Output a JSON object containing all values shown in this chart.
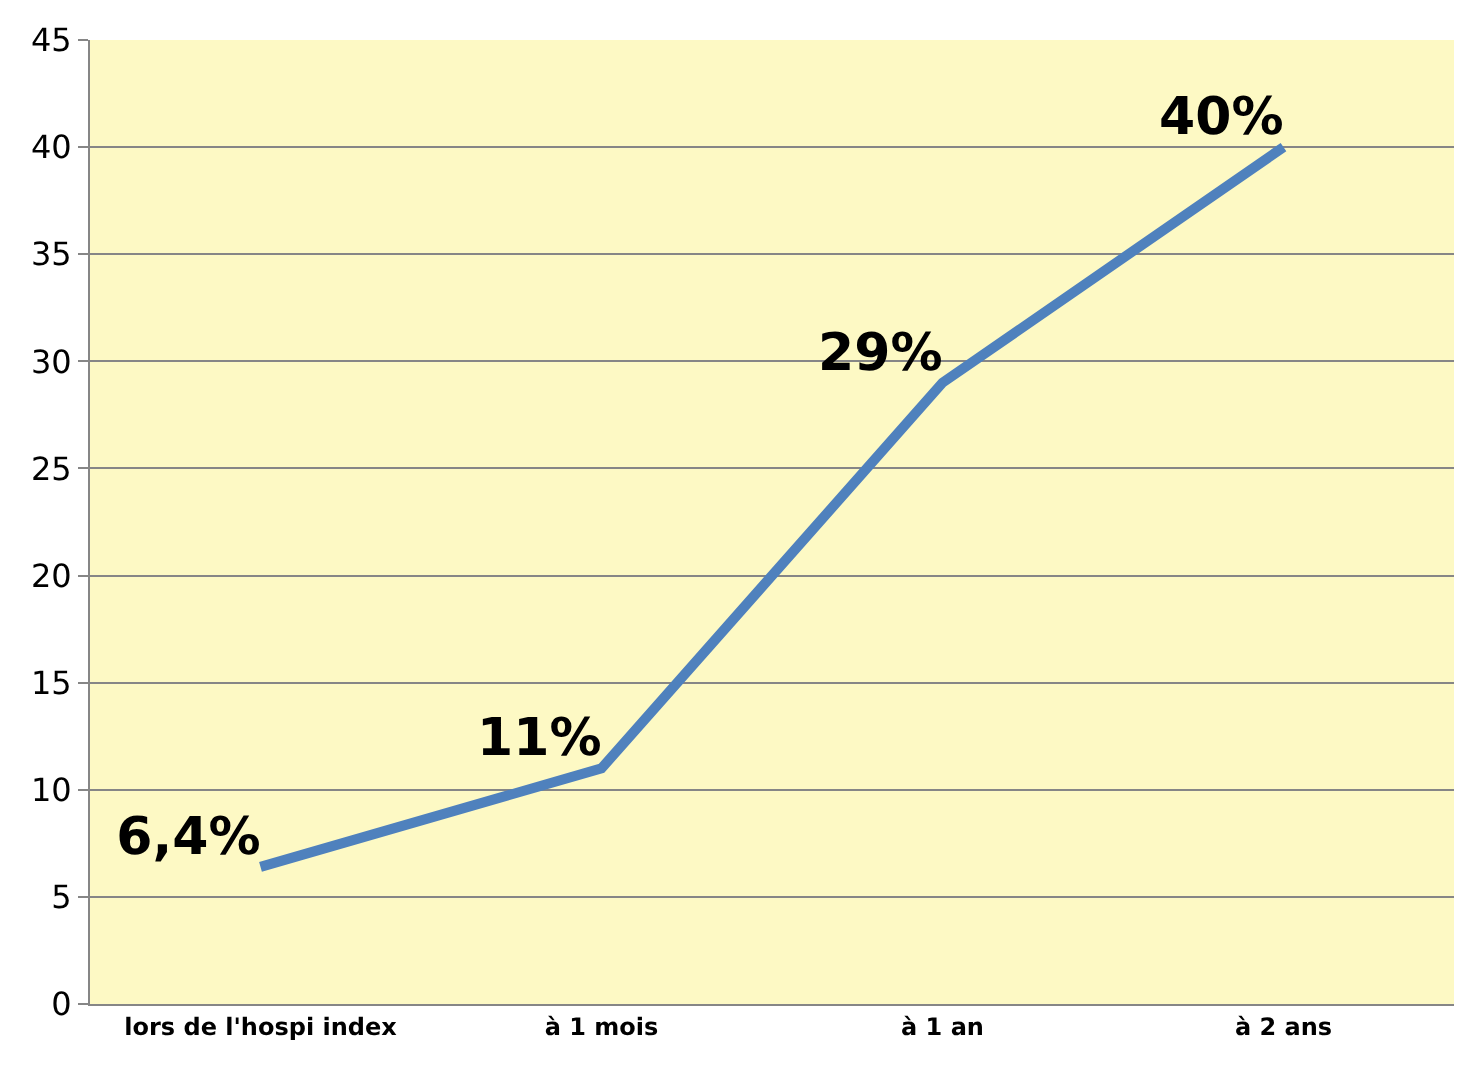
{
  "chart_data": {
    "type": "line",
    "categories": [
      "lors de l'hospi index",
      "à 1 mois",
      "à 1 an",
      "à 2 ans"
    ],
    "series": [
      {
        "color": "#4f81bd",
        "values": [
          6.4,
          11,
          29,
          40
        ],
        "value_labels": [
          "6,4%",
          "11%",
          "29%",
          "40%"
        ]
      }
    ],
    "ylim": [
      0,
      45
    ],
    "yticks": [
      0,
      5,
      10,
      15,
      20,
      25,
      30,
      35,
      40,
      45
    ],
    "grid": "y",
    "legend": false,
    "marker": "none",
    "line_style": "solid"
  }
}
